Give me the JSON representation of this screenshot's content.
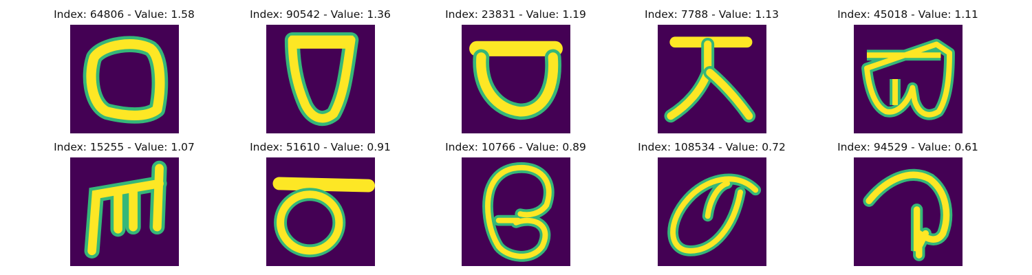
{
  "figure": {
    "background": "#440154",
    "stroke_color": "#fde725",
    "edge_color": "#35b779",
    "panels": [
      {
        "index": "64806",
        "value": "1.58",
        "title": "Index: 64806 - Value: 1.58",
        "glyph": "rounded-loop"
      },
      {
        "index": "90542",
        "value": "1.36",
        "title": "Index: 90542 - Value: 1.36",
        "glyph": "shield-u"
      },
      {
        "index": "23831",
        "value": "1.19",
        "title": "Index: 23831 - Value: 1.19",
        "glyph": "bowl-with-bar"
      },
      {
        "index": "7788",
        "value": "1.13",
        "title": "Index: 7788 - Value: 1.13",
        "glyph": "bar-with-legs"
      },
      {
        "index": "45018",
        "value": "1.11",
        "title": "Index: 45018 - Value: 1.11",
        "glyph": "curled-loop"
      },
      {
        "index": "15255",
        "value": "1.07",
        "title": "Index: 15255 - Value: 1.07",
        "glyph": "comb-m"
      },
      {
        "index": "51610",
        "value": "0.91",
        "title": "Index: 51610 - Value: 0.91",
        "glyph": "circle-with-bar"
      },
      {
        "index": "10766",
        "value": "0.89",
        "title": "Index: 10766 - Value: 0.89",
        "glyph": "double-loop"
      },
      {
        "index": "108534",
        "value": "0.72",
        "title": "Index: 108534 - Value: 0.72",
        "glyph": "leaf-loop"
      },
      {
        "index": "94529",
        "value": "0.61",
        "title": "Index: 94529 - Value: 0.61",
        "glyph": "hook-curve"
      }
    ]
  }
}
